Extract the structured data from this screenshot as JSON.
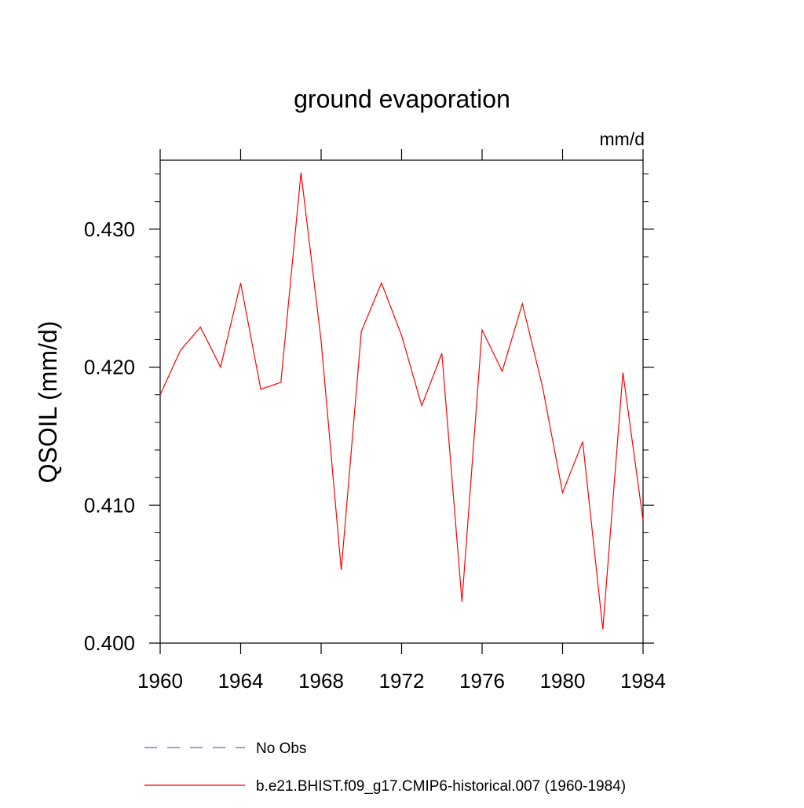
{
  "chart_data": {
    "type": "line",
    "title": "ground evaporation",
    "units_label": "mm/d",
    "ylabel": "QSOIL  (mm/d)",
    "xlabel": "",
    "xlim": [
      1960,
      1984
    ],
    "ylim": [
      0.4,
      0.435
    ],
    "x_ticks": [
      1960,
      1964,
      1968,
      1972,
      1976,
      1980,
      1984
    ],
    "x_tick_labels": [
      "1960",
      "1964",
      "1968",
      "1972",
      "1976",
      "1980",
      "1984"
    ],
    "y_ticks": [
      0.4,
      0.41,
      0.42,
      0.43
    ],
    "y_tick_labels": [
      "0.400",
      "0.410",
      "0.420",
      "0.430"
    ],
    "grid": false,
    "legend_position": "bottom",
    "series": [
      {
        "name": "No Obs",
        "color": "#6a5acd",
        "dash": "dashed",
        "x": [],
        "values": []
      },
      {
        "name": "b.e21.BHIST.f09_g17.CMIP6-historical.007 (1960-1984)",
        "color": "#ff0000",
        "dash": "solid",
        "x": [
          1960,
          1961,
          1962,
          1963,
          1964,
          1965,
          1966,
          1967,
          1968,
          1969,
          1970,
          1971,
          1972,
          1973,
          1974,
          1975,
          1976,
          1977,
          1978,
          1979,
          1980,
          1981,
          1982,
          1983,
          1984
        ],
        "values": [
          0.418,
          0.4212,
          0.4229,
          0.42,
          0.4261,
          0.4184,
          0.4189,
          0.4341,
          0.4219,
          0.4053,
          0.4226,
          0.4261,
          0.4223,
          0.4172,
          0.421,
          0.403,
          0.4227,
          0.4197,
          0.4246,
          0.4186,
          0.4109,
          0.4146,
          0.401,
          0.4196,
          0.4089
        ]
      }
    ]
  }
}
